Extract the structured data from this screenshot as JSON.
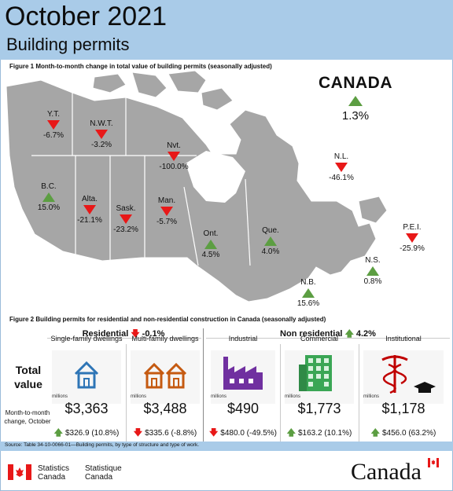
{
  "header": {
    "title": "October 2021",
    "subtitle": "Building permits"
  },
  "figure1": {
    "label": "Figure 1  Month-to-month change in total value of building permits (seasonally adjusted)"
  },
  "canada": {
    "name": "CANADA",
    "value": "1.3%",
    "direction": "up"
  },
  "provinces": [
    {
      "name": "Y.T.",
      "value": "-6.7%",
      "direction": "down"
    },
    {
      "name": "N.W.T.",
      "value": "-3.2%",
      "direction": "down"
    },
    {
      "name": "Nvt.",
      "value": "-100.0%",
      "direction": "down"
    },
    {
      "name": "N.L.",
      "value": "-46.1%",
      "direction": "down"
    },
    {
      "name": "B.C.",
      "value": "15.0%",
      "direction": "up"
    },
    {
      "name": "Alta.",
      "value": "-21.1%",
      "direction": "down"
    },
    {
      "name": "Sask.",
      "value": "-23.2%",
      "direction": "down"
    },
    {
      "name": "Man.",
      "value": "-5.7%",
      "direction": "down"
    },
    {
      "name": "Ont.",
      "value": "4.5%",
      "direction": "up"
    },
    {
      "name": "Que.",
      "value": "4.0%",
      "direction": "up"
    },
    {
      "name": "P.E.I.",
      "value": "-25.9%",
      "direction": "down"
    },
    {
      "name": "N.S.",
      "value": "0.8%",
      "direction": "up"
    },
    {
      "name": "N.B.",
      "value": "15.6%",
      "direction": "up"
    }
  ],
  "figure2": {
    "label": "Figure 2  Building permits for residential and non-residential construction in Canada (seasonally adjusted)",
    "residential": {
      "label": "Residential",
      "change": "-0.1%",
      "direction": "down"
    },
    "non_residential": {
      "label": "Non residential",
      "change": "4.2%",
      "direction": "up"
    },
    "row_total": "Total value",
    "row_change": "Month-to-month change, October",
    "unit": "millions",
    "columns": [
      {
        "label": "Single-family dwellings",
        "amount": "$3,363",
        "change": "$326.9 (10.8%)",
        "direction": "up",
        "icon": "house-icon",
        "color": "#2e75b6"
      },
      {
        "label": "Multi-family dwellings",
        "amount": "$3,488",
        "change": "$335.6 (-8.8%)",
        "direction": "down",
        "icon": "houses-icon",
        "color": "#c55a11"
      },
      {
        "label": "Industrial",
        "amount": "$490",
        "change": "$480.0 (-49.5%)",
        "direction": "down",
        "icon": "factory-icon",
        "color": "#7030a0"
      },
      {
        "label": "Commercial",
        "amount": "$1,773",
        "change": "$163.2 (10.1%)",
        "direction": "up",
        "icon": "office-building-icon",
        "color": "#3aa655"
      },
      {
        "label": "Institutional",
        "amount": "$1,178",
        "change": "$456.0 (63.2%)",
        "direction": "up",
        "icon": "caduceus-icon",
        "color": "#c00000"
      }
    ]
  },
  "source": "Source: Table 34-10-0066-01—Building permits, by type of structure and type of work.",
  "footer": {
    "stats_en": "Statistics",
    "stats_en2": "Canada",
    "stats_fr": "Statistique",
    "stats_fr2": "Canada",
    "wordmark": "Canada"
  }
}
